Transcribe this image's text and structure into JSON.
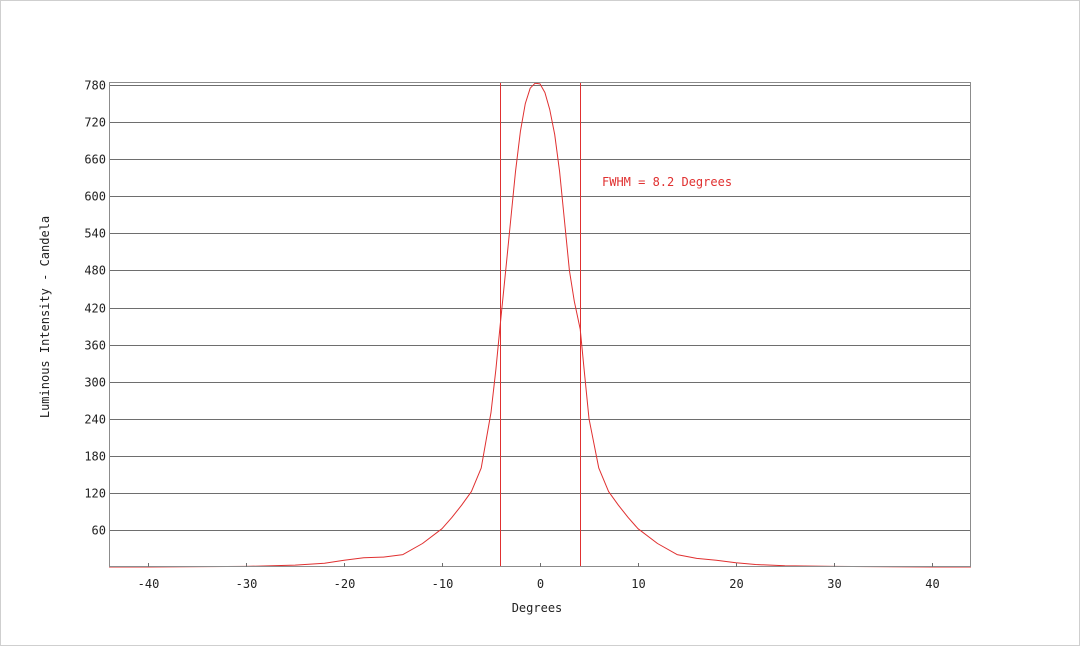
{
  "chart_data": {
    "type": "line",
    "title": "",
    "xlabel": "Degrees",
    "ylabel": "Luminous Intensity - Candela",
    "xlim": [
      -44,
      44
    ],
    "ylim": [
      0,
      785
    ],
    "x_ticks": [
      -40,
      -30,
      -20,
      -10,
      0,
      10,
      20,
      30,
      40
    ],
    "x_tick_labels": [
      "-40",
      "-30",
      "-20",
      "-10",
      "0",
      "10",
      "20",
      "30",
      "40"
    ],
    "y_ticks": [
      60,
      120,
      180,
      240,
      300,
      360,
      420,
      480,
      540,
      600,
      660,
      720,
      780
    ],
    "y_tick_labels": [
      "60",
      "120",
      "180",
      "240",
      "300",
      "360",
      "420",
      "480",
      "540",
      "600",
      "660",
      "720",
      "780"
    ],
    "grid": "horizontal",
    "line_color": "#e03030",
    "series": [
      {
        "x": [
          -44,
          -40,
          -30,
          -25,
          -22,
          -20,
          -18,
          -16,
          -14,
          -12,
          -10,
          -9,
          -8,
          -7,
          -6,
          -5,
          -4.5,
          -4.1,
          -3.5,
          -3,
          -2.5,
          -2,
          -1.5,
          -1,
          -0.5,
          0,
          0.5,
          1,
          1.5,
          2,
          2.5,
          3,
          3.5,
          4.1,
          4.5,
          5,
          6,
          7,
          8,
          9,
          10,
          12,
          14,
          16,
          18,
          20,
          22,
          25,
          30,
          40,
          44
        ],
        "y": [
          0,
          0,
          1,
          3,
          6,
          11,
          15,
          16,
          20,
          38,
          62,
          80,
          100,
          122,
          160,
          250,
          320,
          385,
          480,
          560,
          640,
          705,
          750,
          775,
          783,
          782,
          768,
          740,
          700,
          640,
          560,
          480,
          430,
          385,
          320,
          240,
          160,
          122,
          100,
          80,
          62,
          38,
          20,
          14,
          11,
          7,
          4,
          2,
          1,
          0,
          0
        ]
      }
    ],
    "vlines": [
      -4.1,
      4.1
    ],
    "annotation": "FWHM =  8.2 Degrees"
  }
}
